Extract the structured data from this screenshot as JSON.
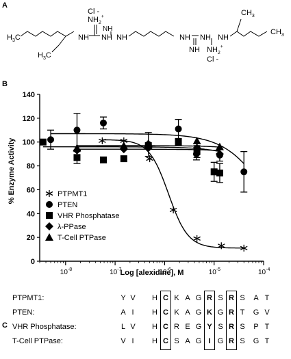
{
  "panel_a": {
    "label": "A",
    "struct": {
      "cl_top": "Cl -",
      "nh2_top": "NH",
      "nh2_top_sub": "2",
      "nh2_top_sup": "+",
      "h3c_top": "H",
      "h3c_top_sub": "3",
      "h3c_top_c": "C",
      "h3c_bot": "H",
      "h3c_bot_sub": "3",
      "h3c_bot_c": "C",
      "nh_left1": "NH",
      "nh_left2": "NH",
      "nh_left3": "NH",
      "nh_left_bottom": "NH",
      "nh_right1": "NH",
      "nh_right2": "NH",
      "nh_right3": "NH",
      "nh_right_bottom": "NH",
      "nh2_bot": "NH",
      "nh2_bot_sub": "2",
      "nh2_bot_sup": "+",
      "cl_bot": "Cl -",
      "ch3_top": "CH",
      "ch3_top_sub": "3",
      "ch3_right": "CH",
      "ch3_right_sub": "3"
    }
  },
  "panel_b": {
    "label": "B"
  },
  "panel_c": {
    "label": "C",
    "rows": [
      {
        "name": "PTPMT1:",
        "residues": [
          "Y",
          "V",
          "H",
          "C",
          "K",
          "A",
          "G",
          "R",
          "S",
          "R",
          "S",
          "A",
          "T"
        ]
      },
      {
        "name": "PTEN:",
        "residues": [
          "A",
          "I",
          "H",
          "C",
          "K",
          "A",
          "G",
          "K",
          "G",
          "R",
          "T",
          "G",
          "V"
        ]
      },
      {
        "name": "VHR Phosphatase:",
        "residues": [
          "L",
          "V",
          "H",
          "C",
          "R",
          "E",
          "G",
          "Y",
          "S",
          "R",
          "S",
          "P",
          "T"
        ]
      },
      {
        "name": "T-Cell PTPase:",
        "residues": [
          "V",
          "I",
          "H",
          "C",
          "S",
          "A",
          "G",
          "I",
          "G",
          "R",
          "S",
          "G",
          "T"
        ]
      }
    ],
    "boxed_positions": [
      3,
      7,
      9
    ]
  },
  "chart_data": {
    "type": "scatter",
    "xlabel": "Log [alexidine], M",
    "ylabel": "% Enzyme Activity",
    "x_scale": "log",
    "xlim": [
      3e-09,
      0.0001
    ],
    "ylim": [
      0,
      140
    ],
    "x_ticks": [
      {
        "v": 1e-08,
        "base": "10",
        "exp": "-8"
      },
      {
        "v": 1e-07,
        "base": "10",
        "exp": "-7"
      },
      {
        "v": 1e-06,
        "base": "10",
        "exp": "-6"
      },
      {
        "v": 1e-05,
        "base": "10",
        "exp": "-5"
      },
      {
        "v": 0.0001,
        "base": "10",
        "exp": "-4"
      }
    ],
    "y_ticks": [
      "0",
      "20",
      "40",
      "60",
      "80",
      "100",
      "120",
      "140"
    ],
    "y_tick_values": [
      0,
      20,
      40,
      60,
      80,
      100,
      120,
      140
    ],
    "legend_position": "bottom-left",
    "series": [
      {
        "name": "PTPMT1",
        "marker": "asterisk",
        "points": [
          {
            "x": 5.5e-08,
            "y": 101
          },
          {
            "x": 1.5e-07,
            "y": 101
          },
          {
            "x": 5e-07,
            "y": 86
          },
          {
            "x": 1.5e-06,
            "y": 43
          },
          {
            "x": 4.5e-06,
            "y": 19
          },
          {
            "x": 1.4e-05,
            "y": 13
          },
          {
            "x": 4e-05,
            "y": 11
          }
        ],
        "curve": {
          "top": 102,
          "bottom": 11,
          "ic50": 1.2e-06,
          "hill": 2.2
        }
      },
      {
        "name": "PTEN",
        "marker": "circle",
        "points": [
          {
            "x": 5e-09,
            "y": 102,
            "err": 8
          },
          {
            "x": 1.7e-08,
            "y": 110,
            "err": 14
          },
          {
            "x": 5.8e-08,
            "y": 116,
            "err": 5
          },
          {
            "x": 4.7e-07,
            "y": 98,
            "err": 10
          },
          {
            "x": 1.9e-06,
            "y": 111,
            "err": 8
          },
          {
            "x": 4.4e-06,
            "y": 90,
            "err": 5
          },
          {
            "x": 1.3e-05,
            "y": 89,
            "err": 5
          },
          {
            "x": 4e-05,
            "y": 75,
            "err": 17
          }
        ],
        "curve": {
          "top": 107,
          "bottom": 0,
          "ic50": 0.00013,
          "hill": 1.0
        }
      },
      {
        "name": "VHR Phosphatase",
        "marker": "square",
        "points": [
          {
            "x": 3.5e-09,
            "y": 100
          },
          {
            "x": 1.7e-08,
            "y": 87,
            "err": 5
          },
          {
            "x": 5.8e-08,
            "y": 85
          },
          {
            "x": 1.5e-07,
            "y": 86
          },
          {
            "x": 4.7e-07,
            "y": 97
          },
          {
            "x": 1.9e-06,
            "y": 100
          },
          {
            "x": 4.5e-06,
            "y": 92,
            "err": 5
          },
          {
            "x": 1e-05,
            "y": 75,
            "err": 8
          },
          {
            "x": 1.3e-05,
            "y": 74,
            "err": 8
          }
        ],
        "curve": {
          "top": 96,
          "bottom": 0,
          "ic50": 0.0003,
          "hill": 1.0
        }
      },
      {
        "name": "λ-PPase",
        "marker": "diamond",
        "points": [
          {
            "x": 1.7e-08,
            "y": 93
          },
          {
            "x": 1.5e-07,
            "y": 94
          },
          {
            "x": 4.7e-07,
            "y": 95
          },
          {
            "x": 4.5e-06,
            "y": 95
          },
          {
            "x": 1.3e-05,
            "y": 90
          }
        ],
        "curve": {
          "top": 94,
          "bottom": 0,
          "ic50": 0.001,
          "hill": 1.0
        }
      },
      {
        "name": "T-Cell PTPase",
        "marker": "triangle",
        "points": [
          {
            "x": 1.7e-08,
            "y": 95
          },
          {
            "x": 1.5e-07,
            "y": 97
          },
          {
            "x": 4.7e-07,
            "y": 99
          },
          {
            "x": 4.5e-06,
            "y": 101
          },
          {
            "x": 1.3e-05,
            "y": 96
          }
        ],
        "curve": {
          "top": 97,
          "bottom": 0,
          "ic50": 0.001,
          "hill": 1.0
        }
      }
    ]
  }
}
